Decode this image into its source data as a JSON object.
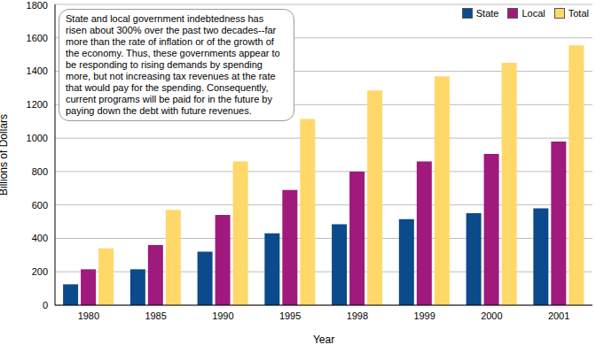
{
  "chart_data": {
    "type": "bar",
    "x_label": "Year",
    "y_label": "Billions of Dollars",
    "annotations": [
      "State and local government indebtedness has risen about 300% over the past two decades--far more than the rate of inflation or of the growth of the economy. Thus, these governments appear to be responding to rising demands by spending more, but not increasing tax revenues at the rate that would pay for the spending. Consequently, current programs will be paid for in the future by paying down the debt with future revenues."
    ],
    "categories": [
      "1980",
      "1985",
      "1990",
      "1995",
      "1998",
      "1999",
      "2000",
      "2001"
    ],
    "series": [
      {
        "name": "State",
        "color": "#0b4a8b",
        "values": [
          125,
          215,
          320,
          430,
          485,
          515,
          550,
          580
        ]
      },
      {
        "name": "Local",
        "color": "#a0197d",
        "values": [
          215,
          360,
          540,
          690,
          800,
          860,
          905,
          980
        ]
      },
      {
        "name": "Total",
        "color": "#ffd86a",
        "values": [
          340,
          570,
          860,
          1115,
          1285,
          1370,
          1450,
          1555
        ]
      }
    ],
    "ylim": [
      0,
      1800
    ],
    "yticks": [
      0,
      200,
      400,
      600,
      800,
      1000,
      1200,
      1400,
      1600,
      1800
    ],
    "grid": true,
    "legend": "top-right"
  }
}
